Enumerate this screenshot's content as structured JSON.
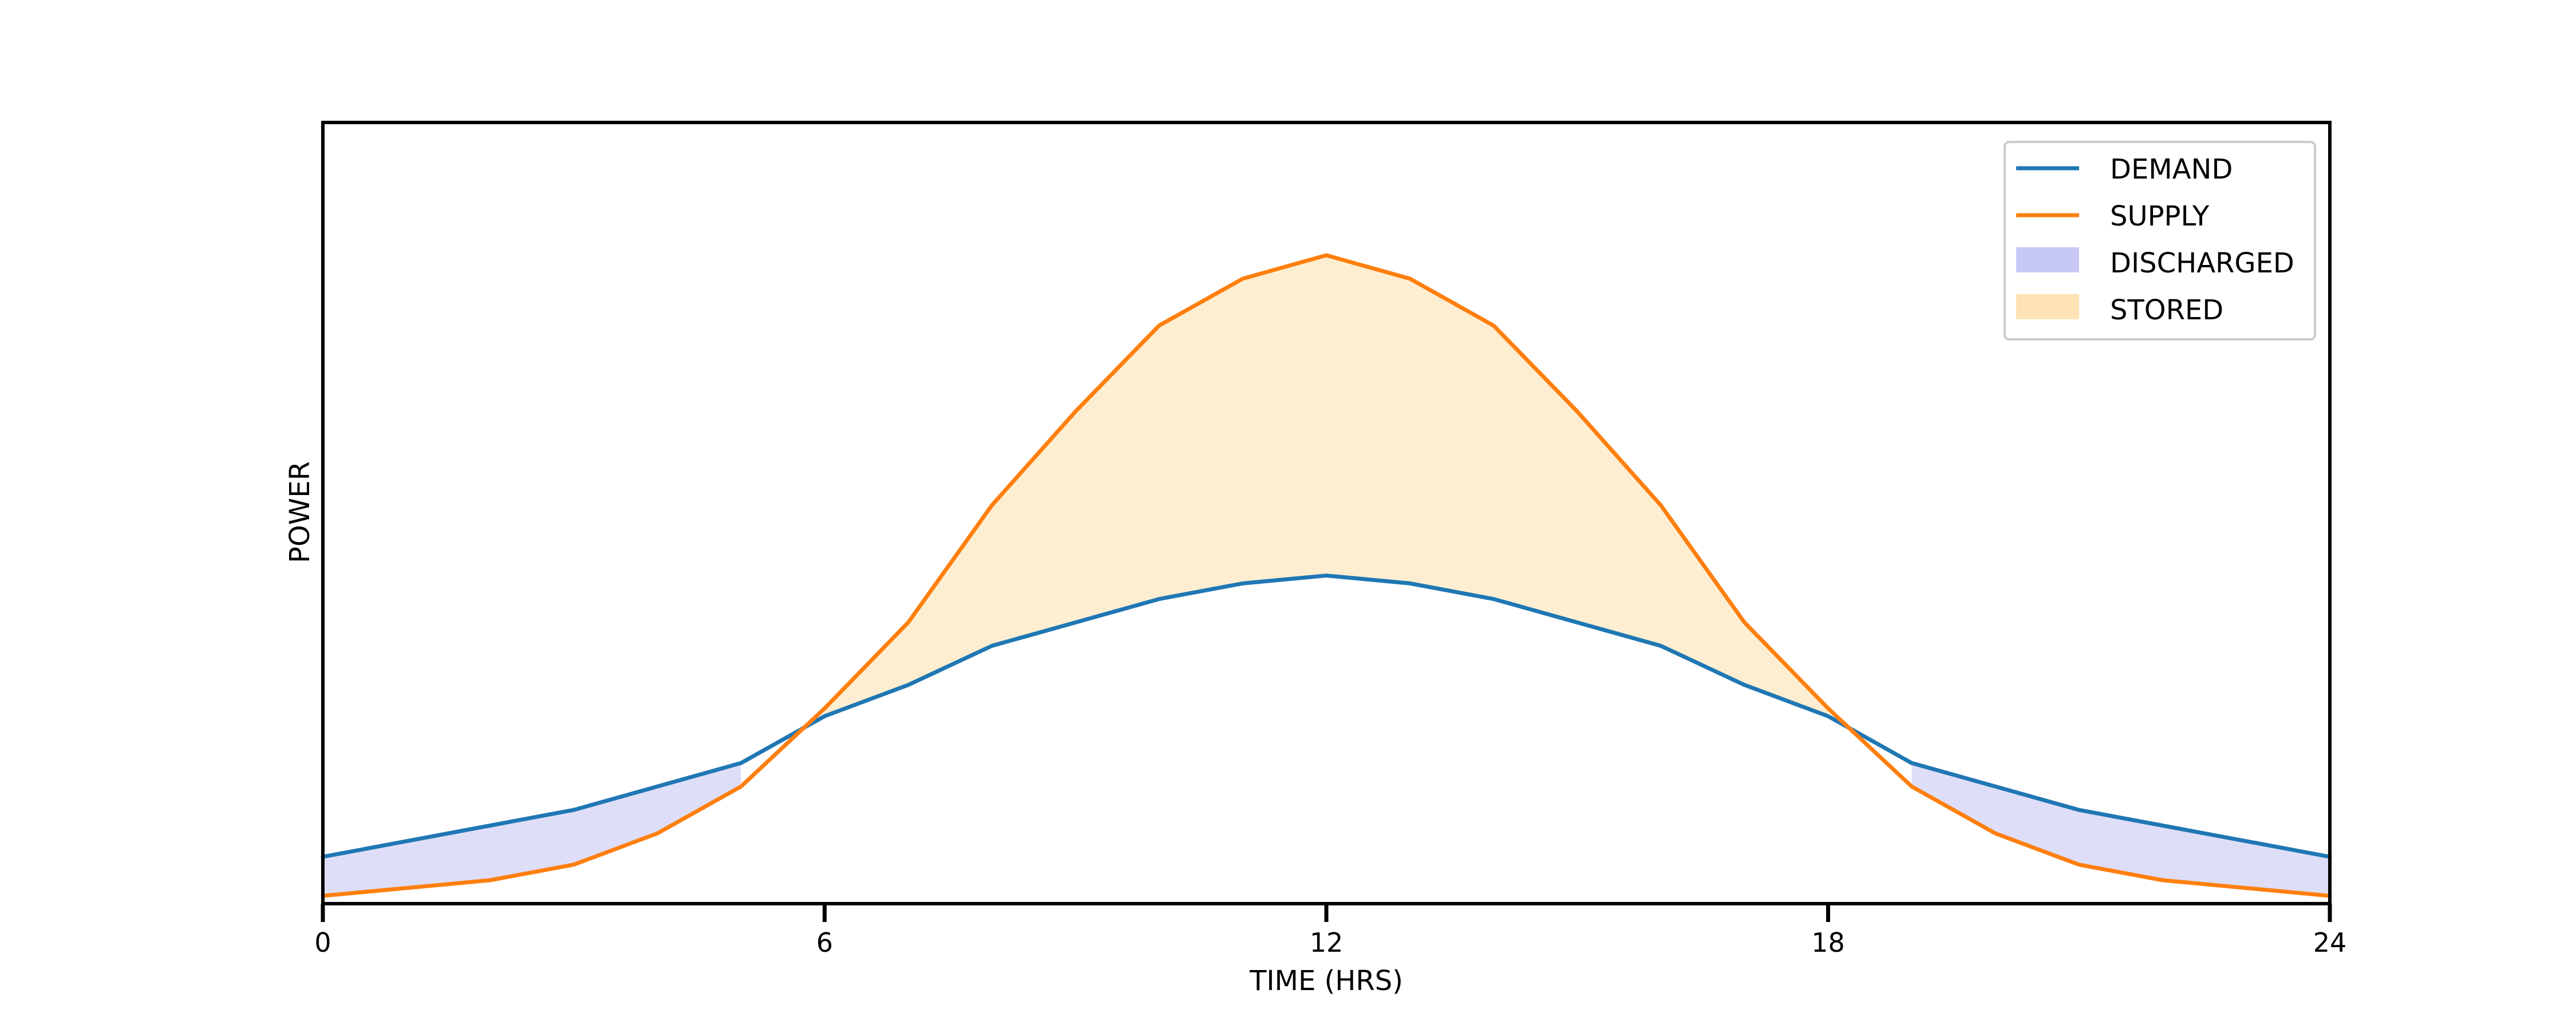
{
  "chart_data": {
    "type": "area",
    "xlabel": "TIME (HRS)",
    "ylabel": "POWER",
    "xlim": [
      0,
      24
    ],
    "ylim": [
      0,
      1.0
    ],
    "xticks": [
      0,
      6,
      12,
      18,
      24
    ],
    "xtick_labels": [
      "0",
      "6",
      "12",
      "18",
      "24"
    ],
    "grid": false,
    "legend_position": "top-right",
    "x": [
      0,
      1,
      2,
      3,
      4,
      5,
      6,
      7,
      8,
      9,
      10,
      11,
      12,
      13,
      14,
      15,
      16,
      17,
      18,
      19,
      20,
      21,
      22,
      23,
      24
    ],
    "series": [
      {
        "name": "DEMAND",
        "kind": "line",
        "color": "#1f77b4",
        "values": [
          0.06,
          0.08,
          0.1,
          0.12,
          0.15,
          0.18,
          0.24,
          0.28,
          0.33,
          0.36,
          0.39,
          0.41,
          0.42,
          0.41,
          0.39,
          0.36,
          0.33,
          0.28,
          0.24,
          0.18,
          0.15,
          0.12,
          0.1,
          0.08,
          0.06
        ]
      },
      {
        "name": "SUPPLY",
        "kind": "line",
        "color": "#ff7f0e",
        "values": [
          0.01,
          0.02,
          0.03,
          0.05,
          0.09,
          0.15,
          0.25,
          0.36,
          0.51,
          0.63,
          0.74,
          0.8,
          0.83,
          0.8,
          0.74,
          0.63,
          0.51,
          0.36,
          0.25,
          0.15,
          0.09,
          0.05,
          0.03,
          0.02,
          0.01
        ]
      },
      {
        "name": "DISCHARGED",
        "kind": "fill_between",
        "color": "#c8c8f5",
        "condition": "DEMAND > SUPPLY"
      },
      {
        "name": "STORED",
        "kind": "fill_between",
        "color": "#fde3b3",
        "condition": "SUPPLY > DEMAND"
      }
    ]
  }
}
